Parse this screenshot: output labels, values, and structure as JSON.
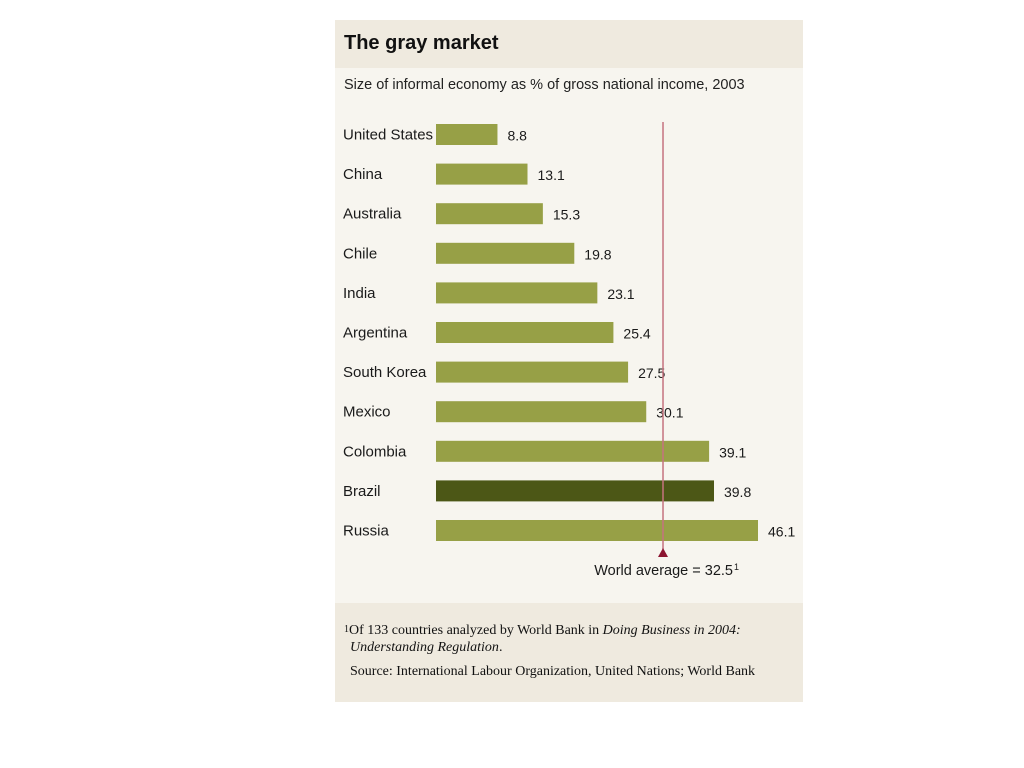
{
  "chart_data": {
    "type": "bar",
    "orientation": "horizontal",
    "title": "The gray market",
    "subtitle": "Size of informal economy as % of gross national income, 2003",
    "categories": [
      "United States",
      "China",
      "Australia",
      "Chile",
      "India",
      "Argentina",
      "South Korea",
      "Mexico",
      "Colombia",
      "Brazil",
      "Russia"
    ],
    "values": [
      8.8,
      13.1,
      15.3,
      19.8,
      23.1,
      25.4,
      27.5,
      30.1,
      39.1,
      39.8,
      46.1
    ],
    "value_labels": [
      "8.8",
      "13.1",
      "15.3",
      "19.8",
      "23.1",
      "25.4",
      "27.5",
      "30.1",
      "39.1",
      "39.8",
      "46.1"
    ],
    "highlight": "Brazil",
    "xlim": [
      0,
      46.1
    ],
    "grid": false,
    "reference_line": {
      "value": 32.5,
      "label": "World average = 32.5",
      "label_sup": "1"
    },
    "colors": {
      "bar": "#97a046",
      "highlight_bar": "#4c5716",
      "reference_line": "#c5737f",
      "reference_marker": "#8c1430"
    }
  },
  "footnote": {
    "marker": "1",
    "text_a": "Of 133 countries analyzed by World Bank in ",
    "text_italic_1": "Doing Business in 2004:",
    "text_italic_2": "Understanding Regulation",
    "text_b": "."
  },
  "source": "Source: International Labour Organization, United Nations; World Bank"
}
